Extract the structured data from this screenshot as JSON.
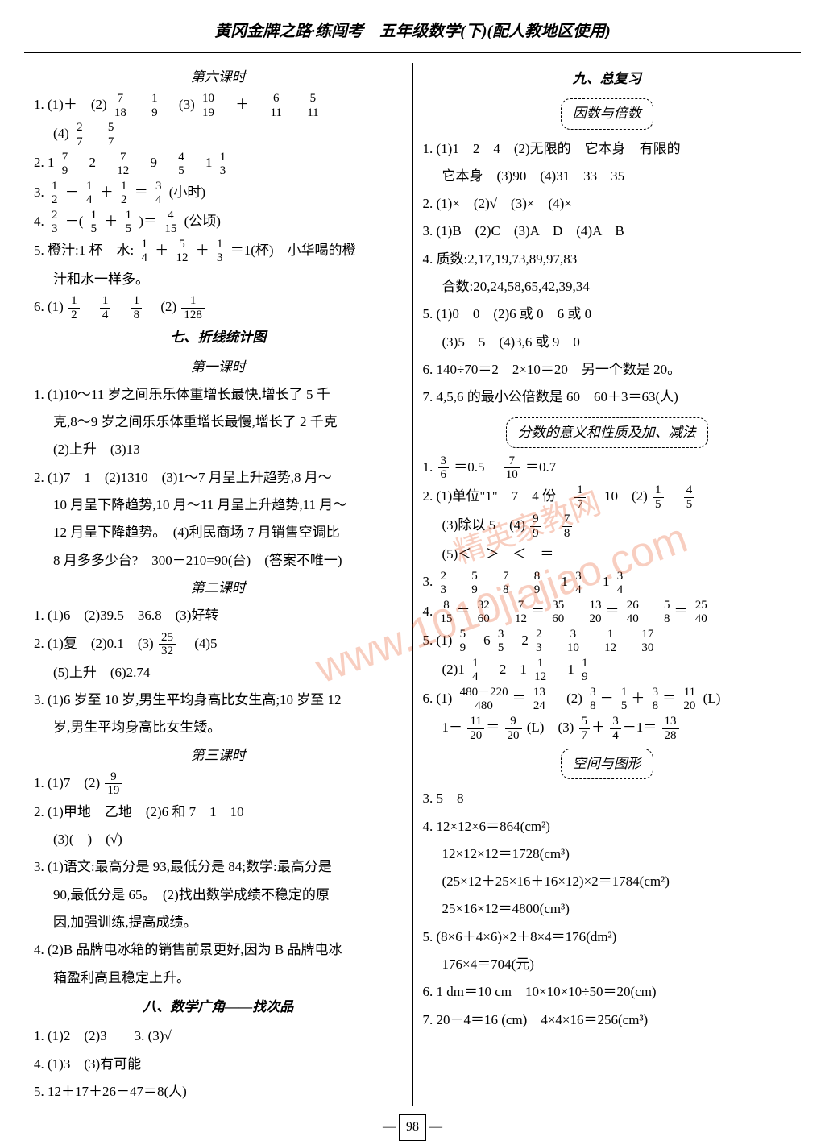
{
  "header_title": "黄冈金牌之路·练闯考　五年级数学(下)(配人教地区使用)",
  "page_number": "98",
  "watermark_url": "www.1010jiajiao.com",
  "watermark_cn": "精英家教网",
  "left": {
    "title6": "第六课时",
    "l1_1": "1. (1)＋　(2)",
    "f_7_18_n": "7",
    "f_7_18_d": "18",
    "f_1_9_n": "1",
    "f_1_9_d": "9",
    "l1_2": "(3)",
    "f_10_19_n": "10",
    "f_10_19_d": "19",
    "l1_3": "＋",
    "f_6_11_n": "6",
    "f_6_11_d": "11",
    "f_5_11_n": "5",
    "f_5_11_d": "11",
    "l1_4": "(4)",
    "f_2_7_n": "2",
    "f_2_7_d": "7",
    "f_5_7_n": "5",
    "f_5_7_d": "7",
    "l2_1": "2. 1",
    "f_7_9_n": "7",
    "f_7_9_d": "9",
    "l2_2": "2",
    "f_7_12_n": "7",
    "f_7_12_d": "12",
    "l2_3": "9",
    "f_4_5_n": "4",
    "f_4_5_d": "5",
    "l2_4": "1",
    "f_1_3_n": "1",
    "f_1_3_d": "3",
    "l3_1": "3. ",
    "f_1_2_n": "1",
    "f_1_2_d": "2",
    "l3_m1": "－",
    "f_1_4_n": "1",
    "f_1_4_d": "4",
    "l3_m2": "＋",
    "l3_eq": "＝",
    "f_3_4_n": "3",
    "f_3_4_d": "4",
    "l3_end": "(小时)",
    "l4_1": "4. ",
    "f_2_3_n": "2",
    "f_2_3_d": "3",
    "l4_m1": "－(",
    "f_1_5_n": "1",
    "f_1_5_d": "5",
    "l4_m2": "＋",
    "l4_m3": ")＝",
    "f_4_15_n": "4",
    "f_4_15_d": "15",
    "l4_end": "(公顷)",
    "l5_1": "5. 橙汁:1 杯　水:",
    "f_5_12_n": "5",
    "f_5_12_d": "12",
    "l5_2": "＋",
    "l5_3": "＝1(杯)　小华喝的橙",
    "l5_4": "汁和水一样多。",
    "l6_1": "6. (1)",
    "f_1_8_n": "1",
    "f_1_8_d": "8",
    "l6_2": "(2)",
    "f_1_128_n": "1",
    "f_1_128_d": "128",
    "title7": "七、折线统计图",
    "sub1": "第一课时",
    "s1_l1": "1. (1)10～11 岁之间乐乐体重增长最快,增长了 5 千",
    "s1_l1b": "克,8～9 岁之间乐乐体重增长最慢,增长了 2 千克",
    "s1_l2": "(2)上升　(3)13",
    "s1_l3": "2. (1)7　1　(2)1310　(3)1～7 月呈上升趋势,8 月～",
    "s1_l3b": "10 月呈下降趋势,10 月～11 月呈上升趋势,11 月～",
    "s1_l3c": "12 月呈下降趋势。　(4)利民商场 7 月销售空调比",
    "s1_l3d": "8 月多多少台?　300－210=90(台)　(答案不唯一)",
    "sub2": "第二课时",
    "s2_l1": "1. (1)6　(2)39.5　36.8　(3)好转",
    "s2_l2a": "2. (1)复　(2)0.1　(3)",
    "f_25_32_n": "25",
    "f_25_32_d": "32",
    "s2_l2b": "(4)5",
    "s2_l3": "(5)上升　(6)2.74",
    "s2_l4": "3. (1)6 岁至 10 岁,男生平均身高比女生高;10 岁至 12",
    "s2_l4b": "岁,男生平均身高比女生矮。",
    "sub3": "第三课时",
    "s3_l1": "1. (1)7　(2)",
    "f_9_19_n": "9",
    "f_9_19_d": "19",
    "s3_l2": "2. (1)甲地　乙地　(2)6 和 7　1　10",
    "s3_l2b": "(3)(　)　(√)",
    "s3_l3": "3. (1)语文:最高分是 93,最低分是 84;数学:最高分是",
    "s3_l3b": "90,最低分是 65。　(2)找出数学成绩不稳定的原",
    "s3_l3c": "因,加强训练,提高成绩。",
    "s3_l4": "4. (2)B 品牌电冰箱的销售前景更好,因为 B 品牌电冰",
    "s3_l4b": "箱盈利高且稳定上升。",
    "title8": "八、数学广角——找次品",
    "s8_l1": "1. (1)2　(2)3　　3. (3)√",
    "s8_l2": "4. (1)3　(3)有可能",
    "s8_l3": "5. 12＋17＋26－47＝8(人)"
  },
  "right": {
    "title9": "九、总复习",
    "tag1": "因数与倍数",
    "r1_l1": "1. (1)1　2　4　(2)无限的　它本身　有限的",
    "r1_l1b": "它本身　(3)90　(4)31　33　35",
    "r1_l2": "2. (1)×　(2)√　(3)×　(4)×",
    "r1_l3": "3. (1)B　(2)C　(3)A　D　(4)A　B",
    "r1_l4": "4. 质数:2,17,19,73,89,97,83",
    "r1_l4b": "合数:20,24,58,65,42,39,34",
    "r1_l5": "5. (1)0　0　(2)6 或 0　6 或 0",
    "r1_l5b": "(3)5　5　(4)3,6 或 9　0",
    "r1_l6": "6. 140÷70＝2　2×10＝20　另一个数是 20。",
    "r1_l7": "7. 4,5,6 的最小公倍数是 60　60＋3＝63(人)",
    "tag2": "分数的意义和性质及加、减法",
    "r2_l1a": "1. ",
    "f_3_6_n": "3",
    "f_3_6_d": "6",
    "r2_l1b": "＝0.5",
    "f_7_10_n": "7",
    "f_7_10_d": "10",
    "r2_l1c": "＝0.7",
    "r2_l2": "2. (1)单位\"1\"　7　4 份",
    "f_1_7_n": "1",
    "f_1_7_d": "7",
    "r2_l2b": "10　(2)",
    "r2_l3a": "(3)除以 5　(4)",
    "f_9_9_n": "9",
    "f_9_9_d": "9",
    "f_7_8_n": "7",
    "f_7_8_d": "8",
    "r2_l4": "(5)＜　＞　＜　＝",
    "r2_l5a": "3. ",
    "f_5_9_n": "5",
    "f_5_9_d": "9",
    "f_8_9_n": "8",
    "f_8_9_d": "9",
    "r2_l5b": "1",
    "r2_l6a": "4. ",
    "f_8_15_n": "8",
    "f_8_15_d": "15",
    "f_32_60_n": "32",
    "f_32_60_d": "60",
    "f_35_60_n": "35",
    "f_35_60_d": "60",
    "f_13_20_n": "13",
    "f_13_20_d": "20",
    "f_26_40_n": "26",
    "f_26_40_d": "40",
    "f_5_8_n": "5",
    "f_5_8_d": "8",
    "f_25_40_n": "25",
    "f_25_40_d": "40",
    "r2_l7a": "5. (1)",
    "f_3_5_n": "3",
    "f_3_5_d": "5",
    "f_3_10_n": "3",
    "f_3_10_d": "10",
    "f_1_12_n": "1",
    "f_1_12_d": "12",
    "f_17_30_n": "17",
    "f_17_30_d": "30",
    "r2_l8a": "(2)1",
    "f_1_1_4_n": "1",
    "f_1_1_4_d": "4",
    "r2_l8b": "2　1",
    "f_1_1_12_n": "1",
    "f_1_1_12_d": "12",
    "r2_l8c": "1",
    "f_1_9r_n": "1",
    "f_1_9r_d": "9",
    "r2_l9a": "6. (1)",
    "f_480_n": "480－220",
    "f_480_d": "480",
    "f_13_24_n": "13",
    "f_13_24_d": "24",
    "r2_l9b": "(2)",
    "f_3_8_n": "3",
    "f_3_8_d": "8",
    "f_11_20_n": "11",
    "f_11_20_d": "20",
    "r2_l9c": "(L)",
    "r2_l10a": "1－",
    "f_9_20_n": "9",
    "f_9_20_d": "20",
    "r2_l10b": "(L)　(3)",
    "f_13_28_n": "13",
    "f_13_28_d": "28",
    "tag3": "空间与图形",
    "r3_l1": "3. 5　8",
    "r3_l2": "4. 12×12×6＝864(cm²)",
    "r3_l2b": "12×12×12＝1728(cm³)",
    "r3_l2c": "(25×12＋25×16＋16×12)×2＝1784(cm²)",
    "r3_l2d": "25×16×12＝4800(cm³)",
    "r3_l3": "5. (8×6＋4×6)×2＋8×4＝176(dm²)",
    "r3_l3b": "176×4＝704(元)",
    "r3_l4": "6. 1 dm＝10 cm　10×10×10÷50＝20(cm)",
    "r3_l5": "7. 20－4＝16 (cm)　4×4×16＝256(cm³)"
  }
}
